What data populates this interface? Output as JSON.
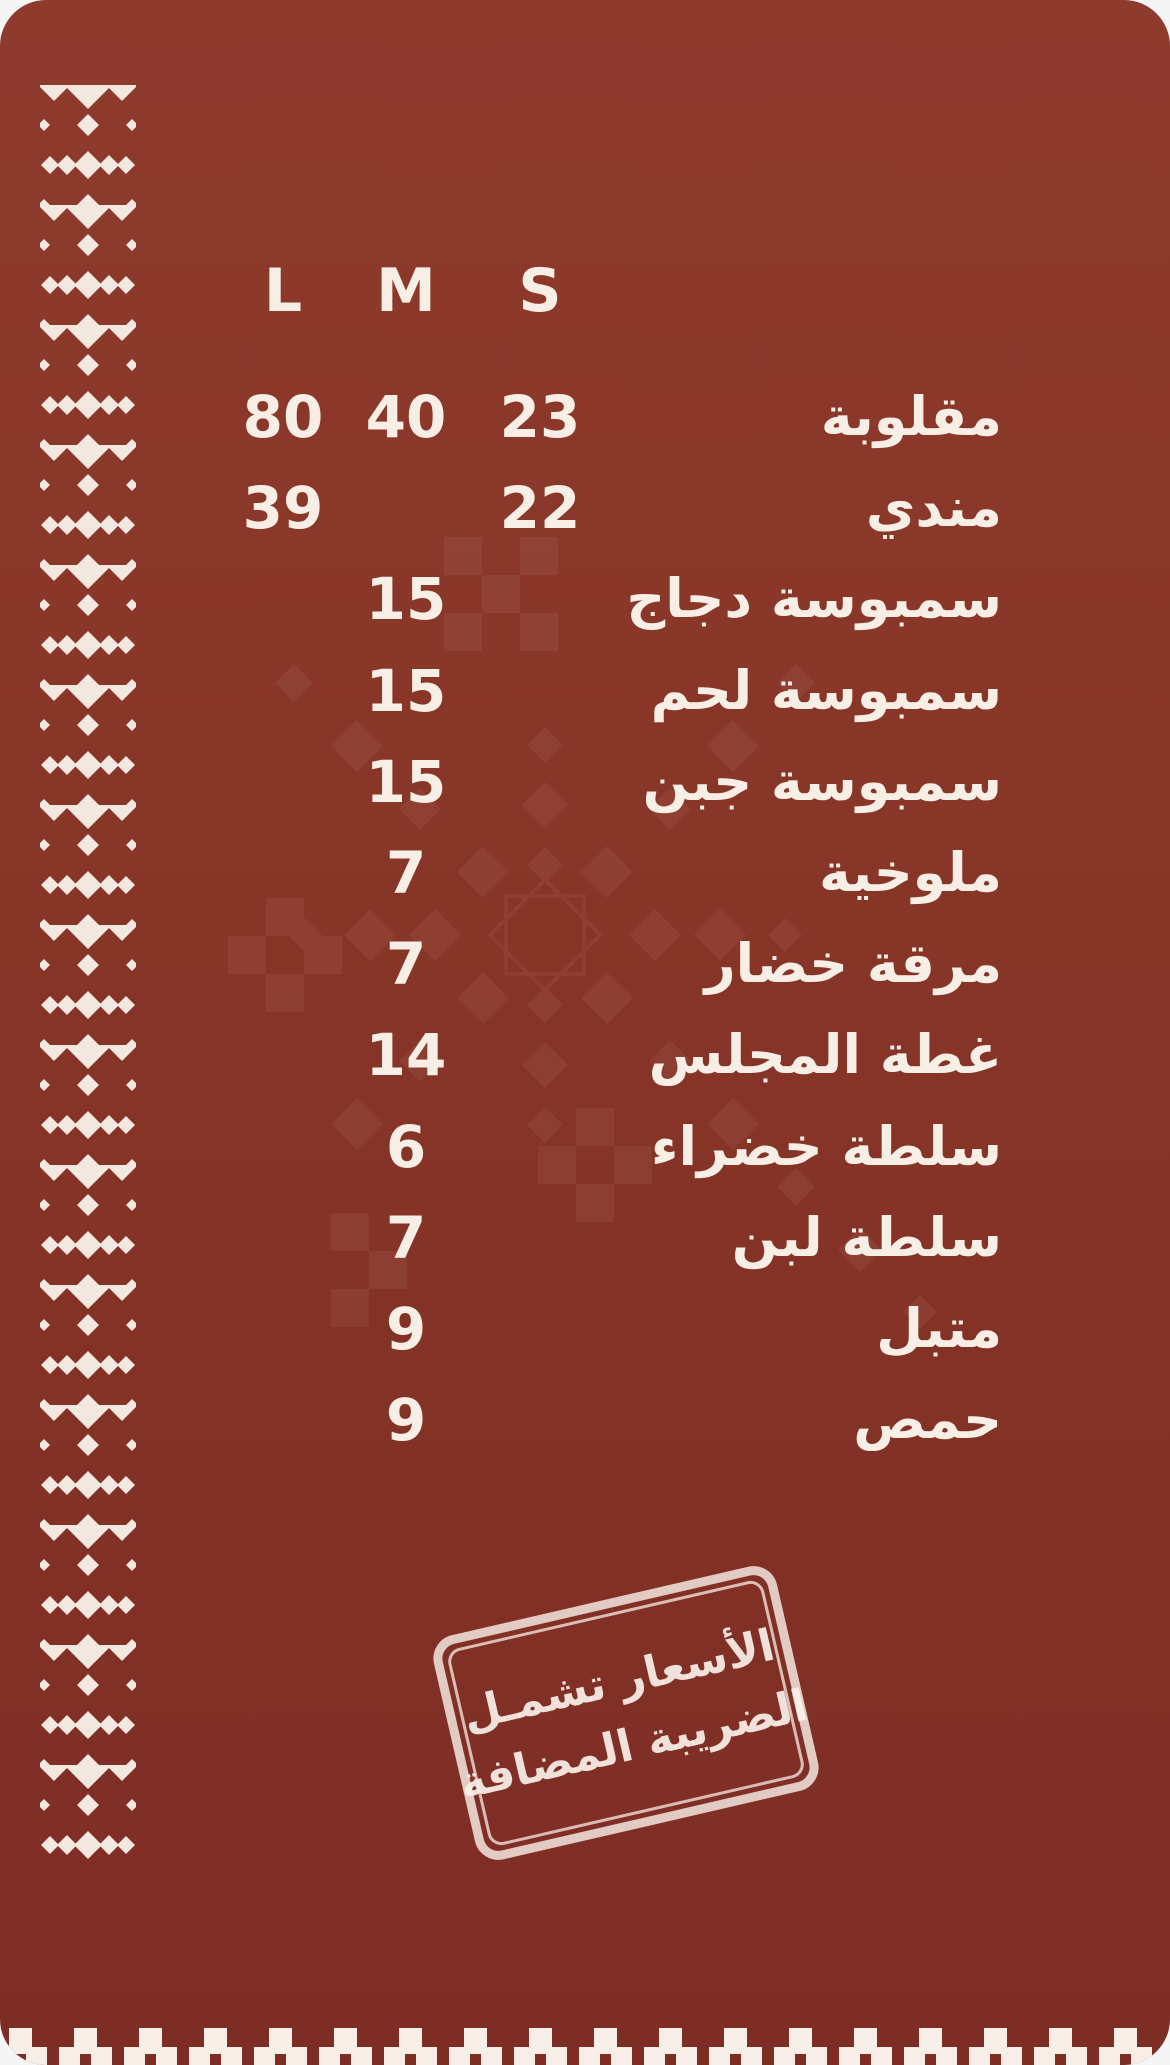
{
  "menu": {
    "size_headers": [
      "L",
      "M",
      "S"
    ],
    "items": [
      {
        "name": "مقلوبة",
        "l": "80",
        "m": "40",
        "s": "23"
      },
      {
        "name": "مندي",
        "l": "39",
        "m": "",
        "s": "22"
      },
      {
        "name": "سمبوسة دجاج",
        "l": "",
        "m": "15",
        "s": ""
      },
      {
        "name": "سمبوسة لحم",
        "l": "",
        "m": "15",
        "s": ""
      },
      {
        "name": "سمبوسة جبن",
        "l": "",
        "m": "15",
        "s": ""
      },
      {
        "name": "ملوخية",
        "l": "",
        "m": "7",
        "s": ""
      },
      {
        "name": "مرقة خضار",
        "l": "",
        "m": "7",
        "s": ""
      },
      {
        "name": "غطة المجلس",
        "l": "",
        "m": "14",
        "s": ""
      },
      {
        "name": "سلطة خضراء",
        "l": "",
        "m": "6",
        "s": ""
      },
      {
        "name": "سلطة لبن",
        "l": "",
        "m": "7",
        "s": ""
      },
      {
        "name": "متبل",
        "l": "",
        "m": "9",
        "s": ""
      },
      {
        "name": "حمص",
        "l": "",
        "m": "9",
        "s": ""
      }
    ]
  },
  "stamp": {
    "line1": "الأسعار تشمـل",
    "line2": "الضريبة المضافة"
  },
  "colors": {
    "background_top": "#8e3b2e",
    "background_bottom": "#7e2d25",
    "text_cream": "#f7eee5"
  }
}
